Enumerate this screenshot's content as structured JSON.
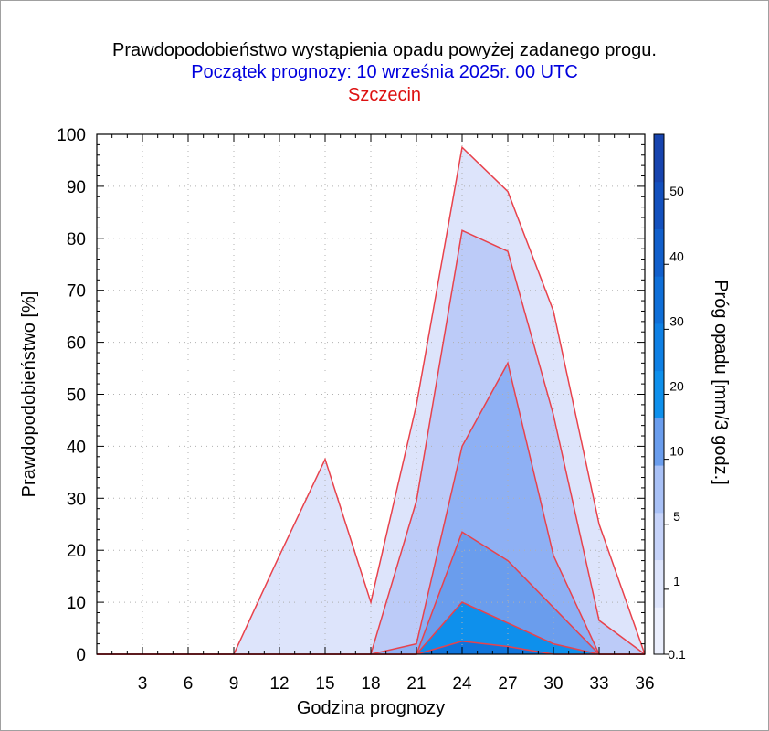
{
  "header": {
    "title": "Prawdopodobieństwo wystąpienia opadu powyżej zadanego progu.",
    "subtitle": "Początek prognozy: 10 września 2025r. 00 UTC",
    "location": "Szczecin"
  },
  "chart_data": {
    "type": "area",
    "title": "Prawdopodobieństwo wystąpienia opadu powyżej zadanego progu.",
    "xlabel": "Godzina prognozy",
    "ylabel": "Prawdopodobieństwo [%]",
    "colorbar_label": "Próg opadu [mm/3 godz.]",
    "xlim": [
      0,
      36
    ],
    "ylim": [
      0,
      100
    ],
    "x": [
      0,
      3,
      6,
      9,
      12,
      15,
      18,
      21,
      24,
      27,
      30,
      33,
      36
    ],
    "x_tick_labels": [
      "3",
      "6",
      "9",
      "12",
      "15",
      "18",
      "21",
      "24",
      "27",
      "30",
      "33",
      "36"
    ],
    "y_tick_labels": [
      "0",
      "10",
      "20",
      "30",
      "40",
      "50",
      "60",
      "70",
      "80",
      "90",
      "100"
    ],
    "grid": true,
    "series": [
      {
        "name": "0.1",
        "color": "#dde4fb",
        "values": [
          0,
          0,
          0,
          0,
          19,
          37.5,
          10,
          48,
          97.5,
          89,
          66,
          25,
          0
        ]
      },
      {
        "name": "1",
        "color": "#bccbf8",
        "values": [
          0,
          0,
          0,
          0,
          0,
          0,
          0,
          29.5,
          81.5,
          77.5,
          46,
          6.5,
          0
        ]
      },
      {
        "name": "5",
        "color": "#8eb0f4",
        "values": [
          0,
          0,
          0,
          0,
          0,
          0,
          0,
          2,
          40,
          56,
          19,
          0,
          0
        ]
      },
      {
        "name": "10",
        "color": "#6a9ded",
        "values": [
          0,
          0,
          0,
          0,
          0,
          0,
          0,
          0,
          23.5,
          18,
          9,
          0,
          0
        ]
      },
      {
        "name": "20",
        "color": "#0e90ec",
        "values": [
          0,
          0,
          0,
          0,
          0,
          0,
          0,
          0,
          10,
          6,
          2,
          0,
          0
        ]
      },
      {
        "name": "30",
        "color": "#0e74dc",
        "values": [
          0,
          0,
          0,
          0,
          0,
          0,
          0,
          0,
          2.5,
          1.5,
          0,
          0,
          0
        ]
      }
    ],
    "colorbar": {
      "tick_labels": [
        "0.1",
        "1",
        "5",
        "10",
        "20",
        "30",
        "40",
        "50"
      ],
      "colors": [
        "#ebeffd",
        "#dde4fb",
        "#c6d3f9",
        "#a9c1f6",
        "#6a9ded",
        "#0e90ec",
        "#0e80e4",
        "#0f6fd8",
        "#115fcb",
        "#1350bd",
        "#1744ae"
      ],
      "boundaries": [
        "0.1",
        "1",
        "5",
        "10",
        "20",
        "30",
        "40",
        "50"
      ]
    },
    "outline_color": "#e8424c"
  }
}
